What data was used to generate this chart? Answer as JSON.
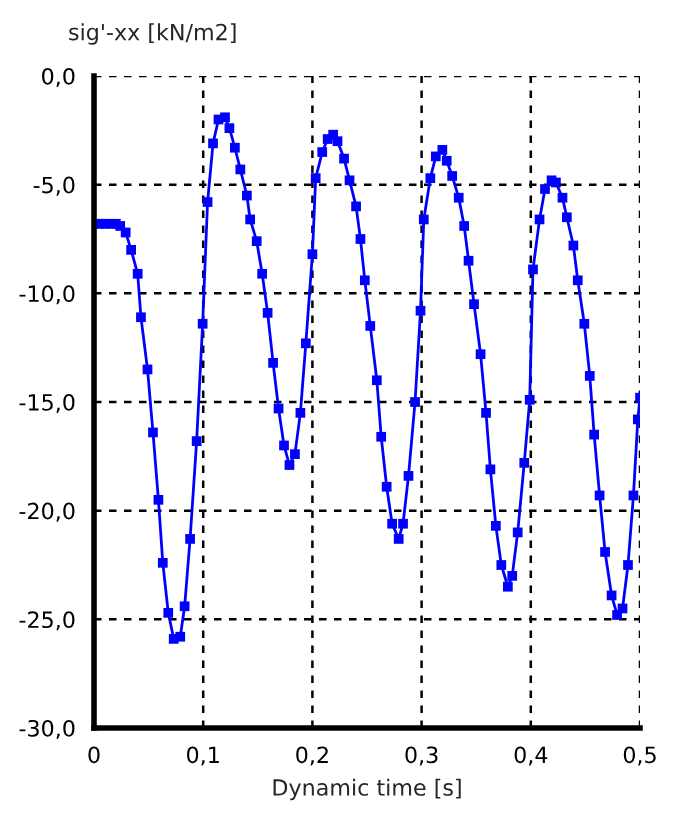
{
  "chart_data": {
    "type": "line",
    "ylabel": "sig'-xx [kN/m2]",
    "xlabel": "Dynamic time [s]",
    "x": [
      0,
      0.005,
      0.01,
      0.015,
      0.02,
      0.024,
      0.029,
      0.034,
      0.04,
      0.043,
      0.049,
      0.054,
      0.059,
      0.063,
      0.068,
      0.073,
      0.079,
      0.083,
      0.088,
      0.094,
      0.0995,
      0.104,
      0.109,
      0.114,
      0.12,
      0.124,
      0.129,
      0.134,
      0.14,
      0.143,
      0.149,
      0.154,
      0.159,
      0.164,
      0.169,
      0.174,
      0.179,
      0.184,
      0.189,
      0.194,
      0.2,
      0.203,
      0.209,
      0.214,
      0.219,
      0.223,
      0.229,
      0.234,
      0.24,
      0.244,
      0.248,
      0.253,
      0.259,
      0.263,
      0.268,
      0.273,
      0.279,
      0.283,
      0.288,
      0.294,
      0.299,
      0.302,
      0.308,
      0.313,
      0.319,
      0.323,
      0.328,
      0.334,
      0.339,
      0.343,
      0.348,
      0.354,
      0.359,
      0.363,
      0.368,
      0.373,
      0.379,
      0.383,
      0.388,
      0.394,
      0.399,
      0.402,
      0.408,
      0.413,
      0.419,
      0.423,
      0.429,
      0.433,
      0.439,
      0.443,
      0.449,
      0.454,
      0.458,
      0.463,
      0.468,
      0.474,
      0.479,
      0.484,
      0.489,
      0.494,
      0.498,
      0.5
    ],
    "series": [
      {
        "color": "#0000ff",
        "values": [
          -6.8,
          -6.8,
          -6.8,
          -6.8,
          -6.8,
          -6.9,
          -7.2,
          -8.0,
          -9.1,
          -11.1,
          -13.5,
          -16.4,
          -19.5,
          -22.4,
          -24.7,
          -25.9,
          -25.8,
          -24.4,
          -21.3,
          -16.8,
          -11.4,
          -5.8,
          -3.1,
          -2.0,
          -1.9,
          -2.4,
          -3.3,
          -4.3,
          -5.5,
          -6.6,
          -7.6,
          -9.1,
          -10.9,
          -13.2,
          -15.3,
          -17.0,
          -17.9,
          -17.4,
          -15.5,
          -12.3,
          -8.2,
          -4.7,
          -3.5,
          -2.9,
          -2.7,
          -3.0,
          -3.8,
          -4.8,
          -6.0,
          -7.5,
          -9.4,
          -11.5,
          -14.0,
          -16.6,
          -18.9,
          -20.6,
          -21.3,
          -20.6,
          -18.4,
          -15.0,
          -10.8,
          -6.6,
          -4.7,
          -3.7,
          -3.4,
          -3.9,
          -4.6,
          -5.6,
          -6.9,
          -8.5,
          -10.5,
          -12.8,
          -15.5,
          -18.1,
          -20.7,
          -22.5,
          -23.5,
          -23.0,
          -21.0,
          -17.8,
          -14.9,
          -8.9,
          -6.6,
          -5.2,
          -4.8,
          -4.9,
          -5.6,
          -6.5,
          -7.8,
          -9.4,
          -11.4,
          -13.8,
          -16.5,
          -19.3,
          -21.9,
          -23.9,
          -24.8,
          -24.5,
          -22.5,
          -19.3,
          -15.8,
          -14.8
        ]
      }
    ],
    "xlim": [
      0,
      0.5
    ],
    "ylim": [
      -30,
      0
    ],
    "xticks": [
      0,
      {
        "value": 0.1,
        "label": "0,1"
      },
      {
        "value": 0.2,
        "label": "0,2"
      },
      {
        "value": 0.3,
        "label": "0,3"
      },
      {
        "value": 0.4,
        "label": "0,4"
      },
      {
        "value": 0.5,
        "label": "0,5"
      }
    ],
    "yticks": [
      {
        "value": -30,
        "label": "-30,0"
      },
      {
        "value": -25,
        "label": "-25,0"
      },
      {
        "value": -20,
        "label": "-20,0"
      },
      {
        "value": -15,
        "label": "-15,0"
      },
      {
        "value": -10,
        "label": "-10,0"
      },
      {
        "value": -5,
        "label": "-5,0"
      },
      {
        "value": 0,
        "label": "0,0"
      }
    ],
    "grid": true,
    "marker": "square",
    "line_style": "solid"
  }
}
